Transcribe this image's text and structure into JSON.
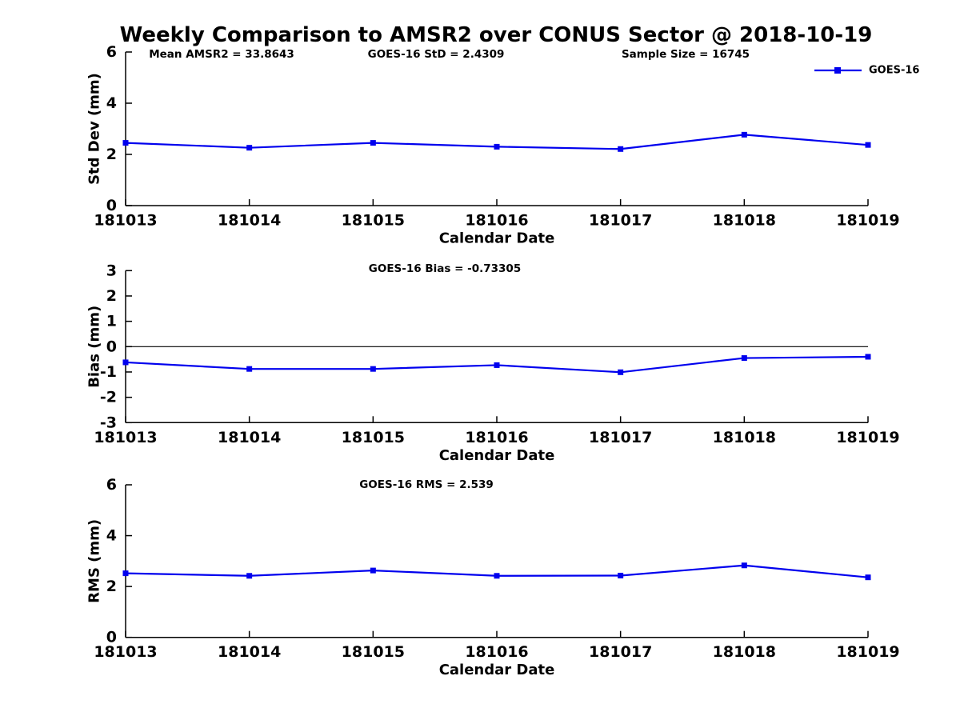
{
  "title": "Weekly Comparison to AMSR2 over CONUS Sector @ 2018-10-19",
  "legend": {
    "label": "GOES-16",
    "position": "top-right"
  },
  "colors": {
    "series": "#0000ee",
    "axis": "#000000",
    "zero_line": "#000000",
    "text": "#000000",
    "background": "#ffffff"
  },
  "chart_data": [
    {
      "type": "line",
      "panel": "std-dev",
      "annotations": [
        "Mean AMSR2 = 33.8643",
        "GOES-16 StD = 2.4309",
        "Sample Size = 16745"
      ],
      "ylabel": "Std Dev (mm)",
      "xlabel": "Calendar Date",
      "categories": [
        "181013",
        "181014",
        "181015",
        "181016",
        "181017",
        "181018",
        "181019"
      ],
      "series": [
        {
          "name": "GOES-16",
          "values": [
            2.45,
            2.26,
            2.45,
            2.3,
            2.21,
            2.77,
            2.37
          ]
        }
      ],
      "ylim": [
        0,
        6
      ],
      "yticks": [
        0,
        2,
        4,
        6
      ],
      "grid": false,
      "zero_line": false
    },
    {
      "type": "line",
      "panel": "bias",
      "annotations": [
        "GOES-16 Bias  = -0.73305"
      ],
      "ylabel": "Bias (mm)",
      "xlabel": "Calendar Date",
      "categories": [
        "181013",
        "181014",
        "181015",
        "181016",
        "181017",
        "181018",
        "181019"
      ],
      "series": [
        {
          "name": "GOES-16",
          "values": [
            -0.62,
            -0.88,
            -0.88,
            -0.73,
            -1.01,
            -0.45,
            -0.4
          ]
        }
      ],
      "ylim": [
        -3,
        3
      ],
      "yticks": [
        -3,
        -2,
        -1,
        0,
        1,
        2,
        3
      ],
      "grid": false,
      "zero_line": true
    },
    {
      "type": "line",
      "panel": "rms",
      "annotations": [
        "GOES-16 RMS = 2.539"
      ],
      "ylabel": "RMS (mm)",
      "xlabel": "Calendar Date",
      "categories": [
        "181013",
        "181014",
        "181015",
        "181016",
        "181017",
        "181018",
        "181019"
      ],
      "series": [
        {
          "name": "GOES-16",
          "values": [
            2.52,
            2.42,
            2.63,
            2.42,
            2.43,
            2.83,
            2.36
          ]
        }
      ],
      "ylim": [
        0,
        6
      ],
      "yticks": [
        0,
        2,
        4,
        6
      ],
      "grid": false,
      "zero_line": false
    }
  ]
}
